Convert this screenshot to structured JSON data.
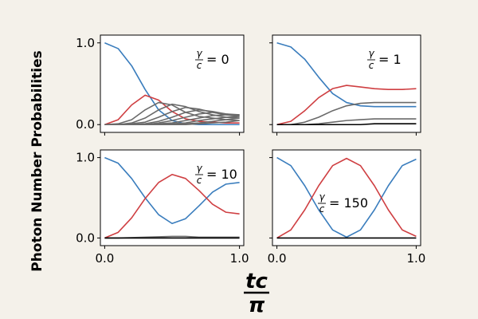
{
  "ylabel": "Photon Number Probabilities",
  "xlabel": {
    "numerator": "tc",
    "denominator": "π"
  },
  "x_ticks": [
    "0.0",
    "1.0"
  ],
  "y_ticks": [
    "0.0",
    "1.0"
  ],
  "colors": {
    "n0": "#3a7dbd",
    "n1": "#cf3f42",
    "higher": "#6a6a6a",
    "zero": "#000000"
  },
  "chart_data": [
    {
      "type": "line",
      "annotation": {
        "symbol": "γ",
        "denominator": "c",
        "value": "= 0"
      },
      "xlim": [
        0,
        1
      ],
      "ylim": [
        0,
        1
      ],
      "x": [
        0,
        0.1,
        0.2,
        0.3,
        0.4,
        0.5,
        0.6,
        0.7,
        0.8,
        0.9,
        1.0
      ],
      "series": [
        {
          "color": "#3a7dbd",
          "values": [
            1.0,
            0.93,
            0.72,
            0.43,
            0.18,
            0.05,
            0.01,
            0.0,
            0.0,
            0.0,
            0.0
          ]
        },
        {
          "color": "#cf3f42",
          "values": [
            0.0,
            0.06,
            0.24,
            0.36,
            0.3,
            0.16,
            0.07,
            0.04,
            0.03,
            0.02,
            0.02
          ]
        },
        {
          "color": "#6a6a6a",
          "values": [
            0.0,
            0.01,
            0.06,
            0.18,
            0.27,
            0.24,
            0.15,
            0.1,
            0.08,
            0.06,
            0.05
          ]
        },
        {
          "color": "#6a6a6a",
          "values": [
            0.0,
            0.0,
            0.02,
            0.08,
            0.18,
            0.25,
            0.22,
            0.16,
            0.12,
            0.09,
            0.08
          ]
        },
        {
          "color": "#6a6a6a",
          "values": [
            0.0,
            0.0,
            0.01,
            0.03,
            0.09,
            0.16,
            0.21,
            0.19,
            0.15,
            0.12,
            0.1
          ]
        },
        {
          "color": "#6a6a6a",
          "values": [
            0.0,
            0.0,
            0.0,
            0.01,
            0.04,
            0.09,
            0.15,
            0.18,
            0.16,
            0.13,
            0.11
          ]
        },
        {
          "color": "#6a6a6a",
          "values": [
            0.0,
            0.0,
            0.0,
            0.0,
            0.02,
            0.05,
            0.09,
            0.13,
            0.15,
            0.13,
            0.12
          ]
        },
        {
          "color": "#6a6a6a",
          "values": [
            0.0,
            0.0,
            0.0,
            0.0,
            0.01,
            0.02,
            0.05,
            0.08,
            0.11,
            0.12,
            0.12
          ]
        },
        {
          "color": "#6a6a6a",
          "values": [
            0.0,
            0.0,
            0.0,
            0.0,
            0.0,
            0.01,
            0.02,
            0.05,
            0.07,
            0.09,
            0.1
          ]
        },
        {
          "color": "#6a6a6a",
          "values": [
            0.0,
            0.0,
            0.0,
            0.0,
            0.0,
            0.0,
            0.01,
            0.02,
            0.04,
            0.06,
            0.08
          ]
        },
        {
          "color": "#6a6a6a",
          "values": [
            0.0,
            0.0,
            0.0,
            0.0,
            0.0,
            0.0,
            0.0,
            0.01,
            0.02,
            0.03,
            0.05
          ]
        }
      ]
    },
    {
      "type": "line",
      "annotation": {
        "symbol": "γ",
        "denominator": "c",
        "value": "= 1"
      },
      "xlim": [
        0,
        1
      ],
      "ylim": [
        0,
        1
      ],
      "x": [
        0,
        0.1,
        0.2,
        0.3,
        0.4,
        0.5,
        0.6,
        0.7,
        0.8,
        0.9,
        1.0
      ],
      "series": [
        {
          "color": "#3a7dbd",
          "values": [
            1.0,
            0.95,
            0.8,
            0.58,
            0.38,
            0.27,
            0.23,
            0.22,
            0.22,
            0.22,
            0.22
          ]
        },
        {
          "color": "#cf3f42",
          "values": [
            0.0,
            0.04,
            0.17,
            0.33,
            0.44,
            0.48,
            0.46,
            0.44,
            0.43,
            0.43,
            0.44
          ]
        },
        {
          "color": "#6a6a6a",
          "values": [
            0.0,
            0.0,
            0.03,
            0.09,
            0.17,
            0.23,
            0.26,
            0.27,
            0.27,
            0.27,
            0.27
          ]
        },
        {
          "color": "#6a6a6a",
          "values": [
            0.0,
            0.0,
            0.0,
            0.01,
            0.03,
            0.05,
            0.06,
            0.07,
            0.07,
            0.07,
            0.07
          ]
        },
        {
          "color": "#000000",
          "values": [
            0.0,
            0.0,
            0.0,
            0.0,
            0.0,
            0.0,
            0.0,
            0.01,
            0.01,
            0.01,
            0.01
          ]
        }
      ]
    },
    {
      "type": "line",
      "annotation": {
        "symbol": "γ",
        "denominator": "c",
        "value": "= 10"
      },
      "xlim": [
        0,
        1
      ],
      "ylim": [
        0,
        1
      ],
      "x": [
        0,
        0.1,
        0.2,
        0.3,
        0.4,
        0.5,
        0.6,
        0.7,
        0.8,
        0.9,
        1.0
      ],
      "series": [
        {
          "color": "#3a7dbd",
          "values": [
            1.0,
            0.93,
            0.74,
            0.5,
            0.29,
            0.18,
            0.24,
            0.4,
            0.57,
            0.67,
            0.69
          ]
        },
        {
          "color": "#cf3f42",
          "values": [
            0.0,
            0.07,
            0.25,
            0.49,
            0.69,
            0.79,
            0.74,
            0.59,
            0.42,
            0.32,
            0.3
          ]
        },
        {
          "color": "#6a6a6a",
          "values": [
            0.0,
            0.0,
            0.005,
            0.01,
            0.015,
            0.02,
            0.02,
            0.01,
            0.01,
            0.01,
            0.01
          ]
        },
        {
          "color": "#000000",
          "values": [
            0.0,
            0.0,
            0.0,
            0.0,
            0.0,
            0.0,
            0.0,
            0.0,
            0.0,
            0.0,
            0.0
          ]
        }
      ]
    },
    {
      "type": "line",
      "annotation": {
        "symbol": "γ",
        "denominator": "c",
        "value": "= 150"
      },
      "xlim": [
        0,
        1
      ],
      "ylim": [
        0,
        1
      ],
      "x": [
        0,
        0.1,
        0.2,
        0.3,
        0.4,
        0.5,
        0.6,
        0.7,
        0.8,
        0.9,
        1.0
      ],
      "series": [
        {
          "color": "#3a7dbd",
          "values": [
            1.0,
            0.9,
            0.65,
            0.35,
            0.1,
            0.01,
            0.1,
            0.35,
            0.65,
            0.9,
            0.98
          ]
        },
        {
          "color": "#cf3f42",
          "values": [
            0.0,
            0.1,
            0.35,
            0.65,
            0.9,
            0.99,
            0.9,
            0.65,
            0.35,
            0.1,
            0.02
          ]
        },
        {
          "color": "#000000",
          "values": [
            0.0,
            0.0,
            0.0,
            0.0,
            0.0,
            0.0,
            0.0,
            0.0,
            0.0,
            0.0,
            0.0
          ]
        }
      ]
    }
  ]
}
